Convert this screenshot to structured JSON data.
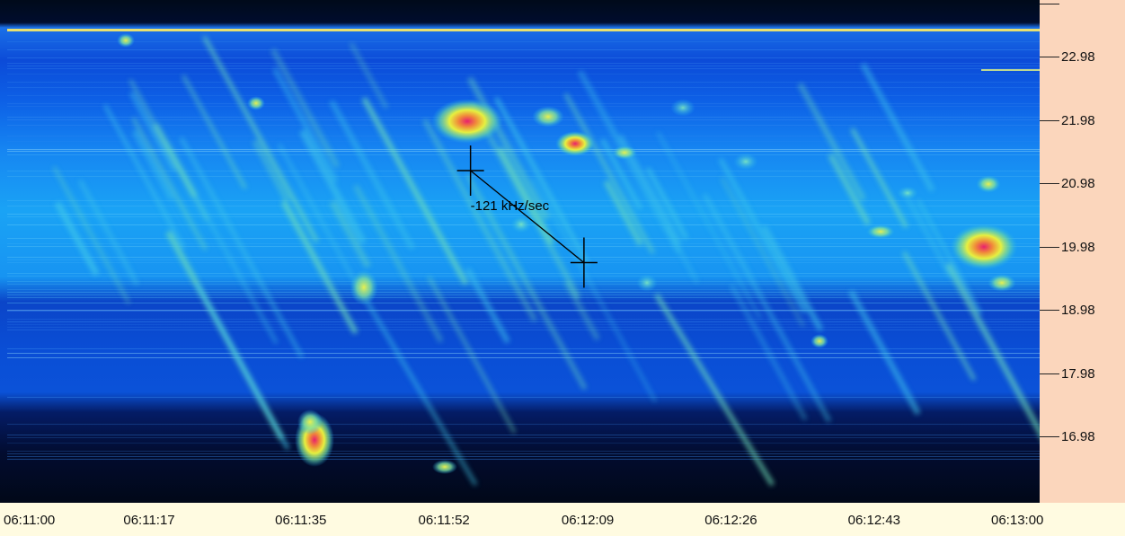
{
  "chart_data": {
    "type": "heatmap",
    "title": "",
    "xlabel": "",
    "ylabel": "",
    "x_ticks": [
      "06:11:00",
      "06:11:17",
      "06:11:35",
      "06:11:52",
      "06:12:09",
      "06:12:26",
      "06:12:43",
      "06:13:00"
    ],
    "y_ticks": [
      "22.98",
      "21.98",
      "20.98",
      "19.98",
      "18.98",
      "17.98",
      "16.98"
    ],
    "xlim": [
      "06:11:00",
      "06:13:00"
    ],
    "colormap": [
      "#000a1e",
      "#001a7a",
      "#0a4fe0",
      "#15a8f5",
      "#6fe0a0",
      "#e8f040",
      "#f07a3a",
      "#e0207a"
    ],
    "annotations": [
      {
        "text": "-121 kHz/sec",
        "from": {
          "time": "06:11:55",
          "freq": 20.98
        },
        "to": {
          "time": "06:12:09",
          "freq": 19.98
        }
      }
    ]
  },
  "colors": {
    "right_panel": "#fbd6bc",
    "bottom_panel": "#fffbe1",
    "marker": "#000000"
  }
}
